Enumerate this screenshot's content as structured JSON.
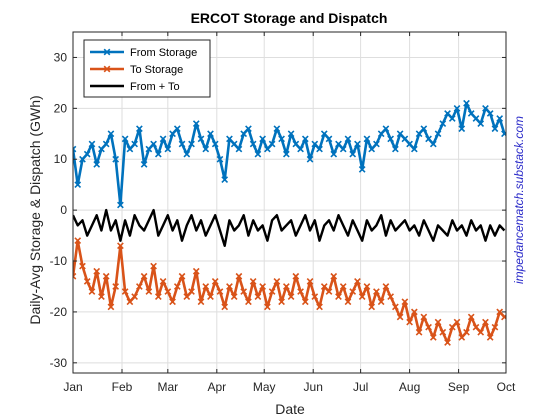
{
  "chart_data": {
    "type": "line",
    "title": "ERCOT Storage and Dispatch",
    "xlabel": "Date",
    "ylabel": "Daily-Avg Storage & Dispatch (GWh)",
    "x_tick_labels": [
      "Jan",
      "Feb",
      "Mar",
      "Apr",
      "May",
      "Jun",
      "Jul",
      "Aug",
      "Sep",
      "Oct"
    ],
    "x_tick_dates": [
      "2024-01-01",
      "2024-02-01",
      "2024-03-01",
      "2024-04-01",
      "2024-05-01",
      "2024-06-01",
      "2024-07-01",
      "2024-08-01",
      "2024-09-01",
      "2024-10-01"
    ],
    "xlim": [
      "2024-01-01",
      "2024-10-01"
    ],
    "ylim": [
      -32,
      35
    ],
    "y_ticks": [
      -30,
      -20,
      -10,
      0,
      10,
      20,
      30
    ],
    "grid": true,
    "legend_position": "top-left",
    "watermark": "impedancematch.substack.com",
    "series": [
      {
        "name": "From Storage",
        "color": "#0072bd",
        "marker": "x",
        "x": [
          "2024-01-01",
          "2024-01-04",
          "2024-01-07",
          "2024-01-10",
          "2024-01-13",
          "2024-01-16",
          "2024-01-19",
          "2024-01-22",
          "2024-01-25",
          "2024-01-28",
          "2024-01-31",
          "2024-02-03",
          "2024-02-06",
          "2024-02-09",
          "2024-02-12",
          "2024-02-15",
          "2024-02-18",
          "2024-02-21",
          "2024-02-24",
          "2024-02-27",
          "2024-03-01",
          "2024-03-04",
          "2024-03-07",
          "2024-03-10",
          "2024-03-13",
          "2024-03-16",
          "2024-03-19",
          "2024-03-22",
          "2024-03-25",
          "2024-03-28",
          "2024-03-31",
          "2024-04-03",
          "2024-04-06",
          "2024-04-09",
          "2024-04-12",
          "2024-04-15",
          "2024-04-18",
          "2024-04-21",
          "2024-04-24",
          "2024-04-27",
          "2024-04-30",
          "2024-05-03",
          "2024-05-06",
          "2024-05-09",
          "2024-05-12",
          "2024-05-15",
          "2024-05-18",
          "2024-05-21",
          "2024-05-24",
          "2024-05-27",
          "2024-05-30",
          "2024-06-02",
          "2024-06-05",
          "2024-06-08",
          "2024-06-11",
          "2024-06-14",
          "2024-06-17",
          "2024-06-20",
          "2024-06-23",
          "2024-06-26",
          "2024-06-29",
          "2024-07-02",
          "2024-07-05",
          "2024-07-08",
          "2024-07-11",
          "2024-07-14",
          "2024-07-17",
          "2024-07-20",
          "2024-07-23",
          "2024-07-26",
          "2024-07-29",
          "2024-08-01",
          "2024-08-04",
          "2024-08-07",
          "2024-08-10",
          "2024-08-13",
          "2024-08-16",
          "2024-08-19",
          "2024-08-22",
          "2024-08-25",
          "2024-08-28",
          "2024-08-31",
          "2024-09-03",
          "2024-09-06",
          "2024-09-09",
          "2024-09-12",
          "2024-09-15",
          "2024-09-18",
          "2024-09-21",
          "2024-09-24",
          "2024-09-27",
          "2024-09-30"
        ],
        "y": [
          12,
          5,
          10,
          11,
          13,
          9,
          12,
          13,
          15,
          10,
          1,
          14,
          12,
          13,
          16,
          9,
          12,
          13,
          11,
          14,
          12,
          15,
          16,
          13,
          11,
          13,
          17,
          14,
          12,
          15,
          13,
          10,
          6,
          14,
          13,
          12,
          15,
          16,
          13,
          11,
          14,
          12,
          13,
          16,
          14,
          11,
          15,
          13,
          12,
          14,
          10,
          13,
          12,
          15,
          14,
          11,
          13,
          12,
          14,
          11,
          13,
          8,
          14,
          12,
          13,
          15,
          16,
          14,
          12,
          15,
          14,
          13,
          12,
          15,
          16,
          14,
          13,
          15,
          17,
          19,
          18,
          20,
          16,
          21,
          19,
          18,
          17,
          20,
          19,
          16,
          18,
          15
        ]
      },
      {
        "name": "To Storage",
        "color": "#d95319",
        "marker": "x",
        "x": [
          "2024-01-01",
          "2024-01-04",
          "2024-01-07",
          "2024-01-10",
          "2024-01-13",
          "2024-01-16",
          "2024-01-19",
          "2024-01-22",
          "2024-01-25",
          "2024-01-28",
          "2024-01-31",
          "2024-02-03",
          "2024-02-06",
          "2024-02-09",
          "2024-02-12",
          "2024-02-15",
          "2024-02-18",
          "2024-02-21",
          "2024-02-24",
          "2024-02-27",
          "2024-03-01",
          "2024-03-04",
          "2024-03-07",
          "2024-03-10",
          "2024-03-13",
          "2024-03-16",
          "2024-03-19",
          "2024-03-22",
          "2024-03-25",
          "2024-03-28",
          "2024-03-31",
          "2024-04-03",
          "2024-04-06",
          "2024-04-09",
          "2024-04-12",
          "2024-04-15",
          "2024-04-18",
          "2024-04-21",
          "2024-04-24",
          "2024-04-27",
          "2024-04-30",
          "2024-05-03",
          "2024-05-06",
          "2024-05-09",
          "2024-05-12",
          "2024-05-15",
          "2024-05-18",
          "2024-05-21",
          "2024-05-24",
          "2024-05-27",
          "2024-05-30",
          "2024-06-02",
          "2024-06-05",
          "2024-06-08",
          "2024-06-11",
          "2024-06-14",
          "2024-06-17",
          "2024-06-20",
          "2024-06-23",
          "2024-06-26",
          "2024-06-29",
          "2024-07-02",
          "2024-07-05",
          "2024-07-08",
          "2024-07-11",
          "2024-07-14",
          "2024-07-17",
          "2024-07-20",
          "2024-07-23",
          "2024-07-26",
          "2024-07-29",
          "2024-08-01",
          "2024-08-04",
          "2024-08-07",
          "2024-08-10",
          "2024-08-13",
          "2024-08-16",
          "2024-08-19",
          "2024-08-22",
          "2024-08-25",
          "2024-08-28",
          "2024-08-31",
          "2024-09-03",
          "2024-09-06",
          "2024-09-09",
          "2024-09-12",
          "2024-09-15",
          "2024-09-18",
          "2024-09-21",
          "2024-09-24",
          "2024-09-27",
          "2024-09-30"
        ],
        "y": [
          -13,
          -6,
          -11,
          -14,
          -16,
          -12,
          -17,
          -13,
          -19,
          -15,
          -7,
          -16,
          -18,
          -17,
          -15,
          -13,
          -16,
          -11,
          -17,
          -14,
          -16,
          -18,
          -15,
          -13,
          -17,
          -16,
          -12,
          -18,
          -15,
          -17,
          -14,
          -16,
          -19,
          -15,
          -17,
          -13,
          -16,
          -18,
          -14,
          -17,
          -15,
          -19,
          -16,
          -14,
          -18,
          -15,
          -17,
          -13,
          -16,
          -18,
          -14,
          -17,
          -19,
          -15,
          -16,
          -13,
          -17,
          -15,
          -18,
          -16,
          -14,
          -17,
          -15,
          -19,
          -16,
          -18,
          -15,
          -17,
          -19,
          -21,
          -18,
          -22,
          -20,
          -24,
          -21,
          -23,
          -25,
          -22,
          -24,
          -26,
          -23,
          -22,
          -25,
          -24,
          -21,
          -23,
          -24,
          -22,
          -25,
          -23,
          -20,
          -21
        ]
      },
      {
        "name": "From + To",
        "color": "#000000",
        "marker": "none",
        "x": [
          "2024-01-01",
          "2024-01-04",
          "2024-01-07",
          "2024-01-10",
          "2024-01-13",
          "2024-01-16",
          "2024-01-19",
          "2024-01-22",
          "2024-01-25",
          "2024-01-28",
          "2024-01-31",
          "2024-02-03",
          "2024-02-06",
          "2024-02-09",
          "2024-02-12",
          "2024-02-15",
          "2024-02-18",
          "2024-02-21",
          "2024-02-24",
          "2024-02-27",
          "2024-03-01",
          "2024-03-04",
          "2024-03-07",
          "2024-03-10",
          "2024-03-13",
          "2024-03-16",
          "2024-03-19",
          "2024-03-22",
          "2024-03-25",
          "2024-03-28",
          "2024-03-31",
          "2024-04-03",
          "2024-04-06",
          "2024-04-09",
          "2024-04-12",
          "2024-04-15",
          "2024-04-18",
          "2024-04-21",
          "2024-04-24",
          "2024-04-27",
          "2024-04-30",
          "2024-05-03",
          "2024-05-06",
          "2024-05-09",
          "2024-05-12",
          "2024-05-15",
          "2024-05-18",
          "2024-05-21",
          "2024-05-24",
          "2024-05-27",
          "2024-05-30",
          "2024-06-02",
          "2024-06-05",
          "2024-06-08",
          "2024-06-11",
          "2024-06-14",
          "2024-06-17",
          "2024-06-20",
          "2024-06-23",
          "2024-06-26",
          "2024-06-29",
          "2024-07-02",
          "2024-07-05",
          "2024-07-08",
          "2024-07-11",
          "2024-07-14",
          "2024-07-17",
          "2024-07-20",
          "2024-07-23",
          "2024-07-26",
          "2024-07-29",
          "2024-08-01",
          "2024-08-04",
          "2024-08-07",
          "2024-08-10",
          "2024-08-13",
          "2024-08-16",
          "2024-08-19",
          "2024-08-22",
          "2024-08-25",
          "2024-08-28",
          "2024-08-31",
          "2024-09-03",
          "2024-09-06",
          "2024-09-09",
          "2024-09-12",
          "2024-09-15",
          "2024-09-18",
          "2024-09-21",
          "2024-09-24",
          "2024-09-27",
          "2024-09-30"
        ],
        "y": [
          -1,
          -3,
          -2,
          -5,
          -3,
          -1,
          -4,
          0,
          -4,
          -2,
          -6,
          -2,
          -5,
          -1,
          -3,
          -4,
          -2,
          0,
          -5,
          -3,
          -1,
          -4,
          -2,
          -6,
          -3,
          -1,
          -4,
          -2,
          -5,
          -3,
          -1,
          -4,
          -7,
          -2,
          -4,
          -3,
          -1,
          -5,
          -2,
          -4,
          -3,
          -6,
          -2,
          -1,
          -4,
          -3,
          -2,
          -5,
          -3,
          -1,
          -4,
          -2,
          -6,
          -3,
          -2,
          -4,
          -1,
          -3,
          -5,
          -2,
          -4,
          -6,
          -2,
          -4,
          -3,
          -1,
          -5,
          -2,
          -4,
          -3,
          -2,
          -4,
          -3,
          -5,
          -2,
          -4,
          -6,
          -3,
          -4,
          -5,
          -2,
          -4,
          -3,
          -5,
          -2,
          -4,
          -3,
          -6,
          -3,
          -5,
          -3,
          -4
        ]
      }
    ]
  }
}
